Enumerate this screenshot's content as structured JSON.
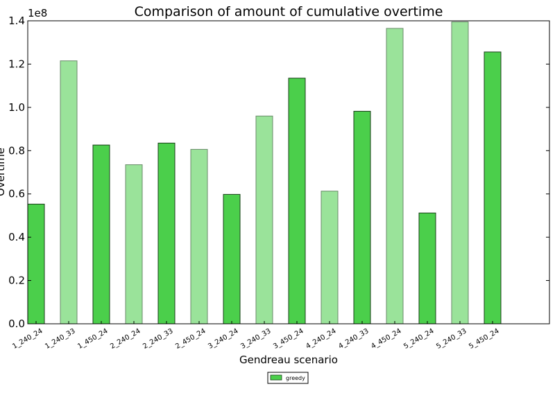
{
  "chart_data": {
    "type": "bar",
    "title": "Comparison of amount of cumulative overtime",
    "xlabel": "Gendreau scenario",
    "ylabel": "Overtime",
    "y_offset_text": "1e8",
    "ylim": [
      0,
      1.4
    ],
    "yticks": [
      "0.0",
      "0.2",
      "0.4",
      "0.6",
      "0.8",
      "1.0",
      "1.2",
      "1.4"
    ],
    "categories": [
      "1_240_24",
      "1_240_33",
      "1_450_24",
      "2_240_24",
      "2_240_33",
      "2_450_24",
      "3_240_24",
      "3_240_33",
      "3_450_24",
      "4_240_24",
      "4_240_33",
      "4_450_24",
      "5_240_24",
      "5_240_33",
      "5_450_24"
    ],
    "series": [
      {
        "name": "greedy",
        "values": [
          0.553,
          1.215,
          0.826,
          0.735,
          0.835,
          0.806,
          0.598,
          0.96,
          1.135,
          0.613,
          0.982,
          1.365,
          0.512,
          1.395,
          1.256
        ]
      }
    ],
    "colors": {
      "dark": "#4bcf4b",
      "light": "#9ae39a",
      "dark_edge": "#1a3d1a",
      "light_edge": "#6a8a6a"
    },
    "grid": false,
    "legend": {
      "placement": "below-center",
      "entries": [
        "greedy"
      ]
    }
  }
}
